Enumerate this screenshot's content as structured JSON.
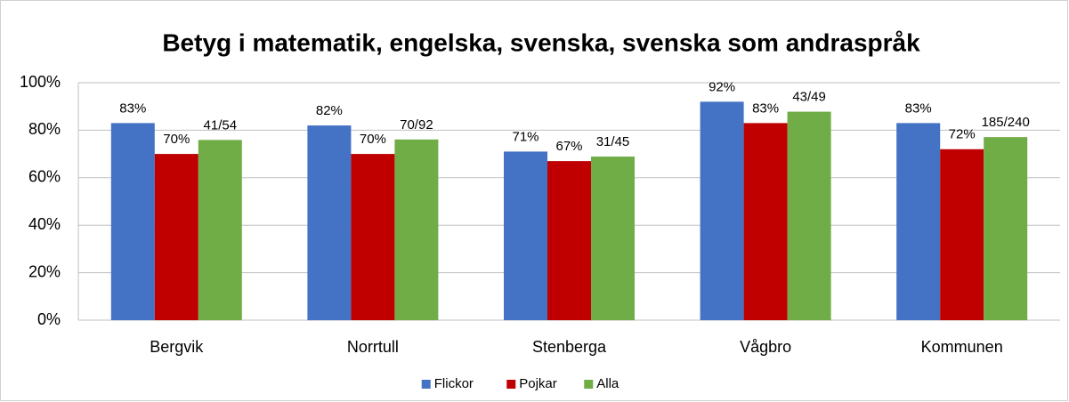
{
  "chart_data": {
    "type": "bar",
    "title": "Betyg i matematik, engelska, svenska, svenska som andraspråk",
    "categories": [
      "Bergvik",
      "Norrtull",
      "Stenberga",
      "Vågbro",
      "Kommunen"
    ],
    "series": [
      {
        "name": "Flickor",
        "color": "#4472c4",
        "values": [
          83,
          82,
          71,
          92,
          83
        ],
        "value_labels": [
          "83%",
          "82%",
          "71%",
          "92%",
          "83%"
        ]
      },
      {
        "name": "Pojkar",
        "color": "#c00000",
        "values": [
          70,
          70,
          67,
          83,
          72
        ],
        "value_labels": [
          "70%",
          "70%",
          "67%",
          "83%",
          "72%"
        ]
      },
      {
        "name": "Alla",
        "color": "#70ad47",
        "values": [
          75.9,
          76.1,
          68.9,
          87.8,
          77.1
        ],
        "value_labels": [
          "41/54",
          "70/92",
          "31/45",
          "43/49",
          "185/240"
        ]
      }
    ],
    "ylim": [
      0,
      100
    ],
    "yticks": [
      {
        "value": 0,
        "label": "0%"
      },
      {
        "value": 20,
        "label": "20%"
      },
      {
        "value": 40,
        "label": "40%"
      },
      {
        "value": 60,
        "label": "60%"
      },
      {
        "value": 80,
        "label": "80%"
      },
      {
        "value": 100,
        "label": "100%"
      }
    ],
    "grid": true,
    "legend": "bottom"
  }
}
